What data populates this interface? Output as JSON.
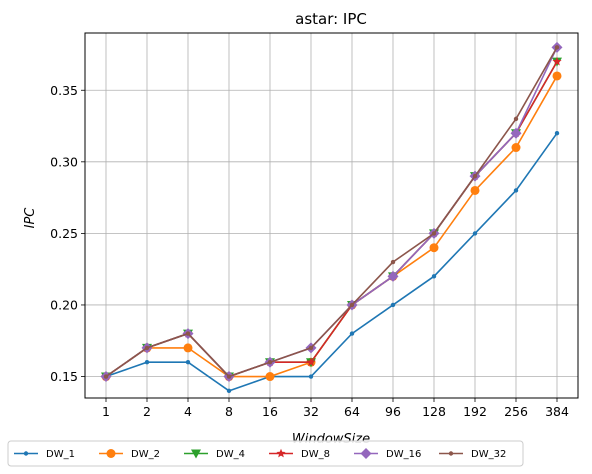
{
  "chart_data": {
    "type": "line",
    "title": "astar: IPC",
    "xlabel": "WindowSize",
    "ylabel": "IPC",
    "categories": [
      "1",
      "2",
      "4",
      "8",
      "16",
      "32",
      "64",
      "96",
      "128",
      "192",
      "256",
      "384"
    ],
    "ylim": [
      0.135,
      0.39
    ],
    "yticks": [
      0.15,
      0.2,
      0.25,
      0.3,
      0.35
    ],
    "ytick_labels": [
      "0.15",
      "0.20",
      "0.25",
      "0.30",
      "0.35"
    ],
    "grid": true,
    "legend_position": "bottom",
    "series": [
      {
        "name": "DW_1",
        "color": "#1f77b4",
        "marker": "point",
        "values": [
          0.15,
          0.16,
          0.16,
          0.14,
          0.15,
          0.15,
          0.18,
          0.2,
          0.22,
          0.25,
          0.28,
          0.32
        ]
      },
      {
        "name": "DW_2",
        "color": "#ff7f0e",
        "marker": "circle",
        "values": [
          0.15,
          0.17,
          0.17,
          0.15,
          0.15,
          0.16,
          0.2,
          0.22,
          0.24,
          0.28,
          0.31,
          0.36
        ]
      },
      {
        "name": "DW_4",
        "color": "#2ca02c",
        "marker": "triangle",
        "values": [
          0.15,
          0.17,
          0.18,
          0.15,
          0.16,
          0.16,
          0.2,
          0.22,
          0.25,
          0.29,
          0.32,
          0.37
        ]
      },
      {
        "name": "DW_8",
        "color": "#d62728",
        "marker": "star",
        "values": [
          0.15,
          0.17,
          0.18,
          0.15,
          0.16,
          0.16,
          0.2,
          0.22,
          0.25,
          0.29,
          0.32,
          0.37
        ]
      },
      {
        "name": "DW_16",
        "color": "#9467bd",
        "marker": "diamond",
        "values": [
          0.15,
          0.17,
          0.18,
          0.15,
          0.16,
          0.17,
          0.2,
          0.22,
          0.25,
          0.29,
          0.32,
          0.38
        ]
      },
      {
        "name": "DW_32",
        "color": "#8c564b",
        "marker": "point",
        "values": [
          0.15,
          0.17,
          0.18,
          0.15,
          0.16,
          0.17,
          0.2,
          0.23,
          0.25,
          0.29,
          0.33,
          0.38
        ]
      }
    ]
  }
}
